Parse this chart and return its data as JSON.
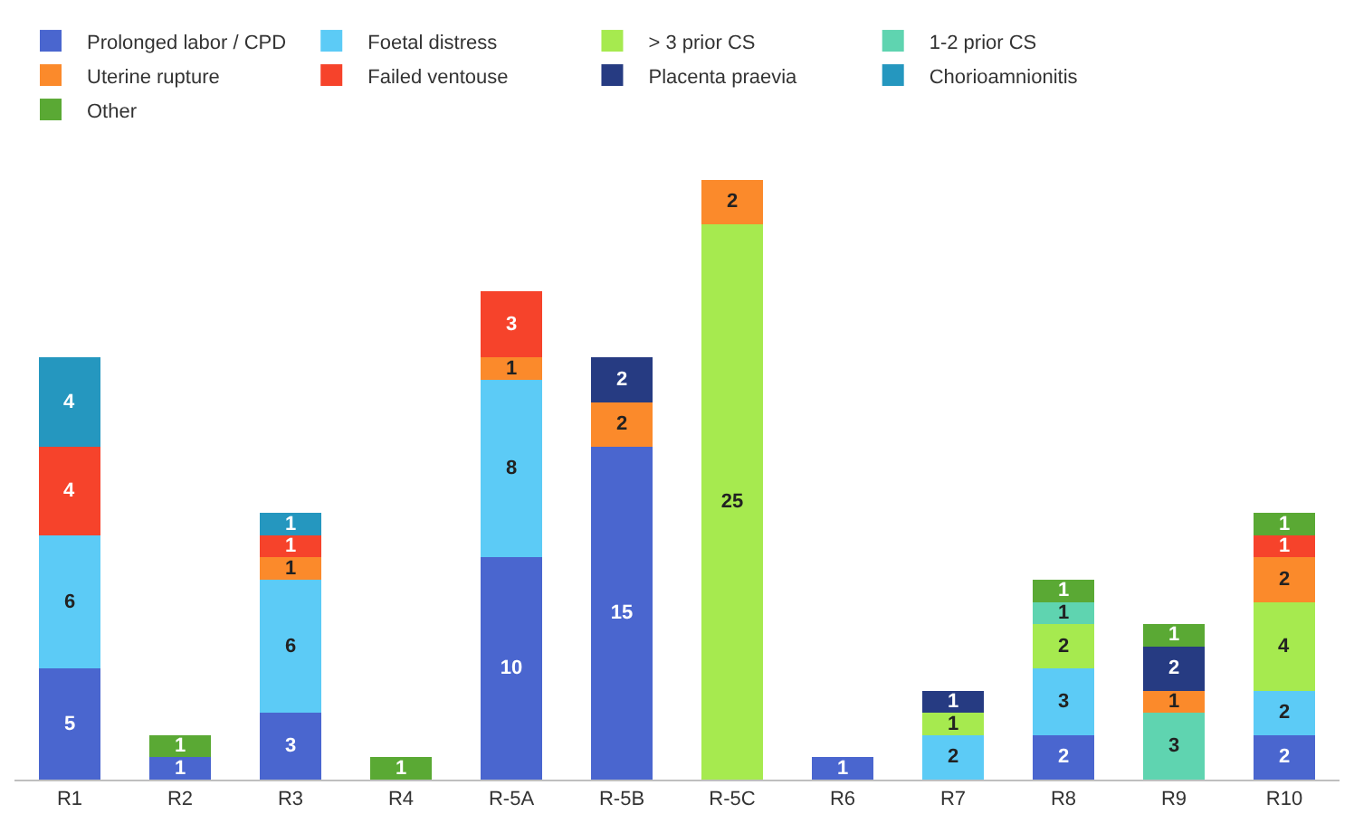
{
  "chart_data": {
    "type": "bar",
    "stacked": true,
    "data_labels": true,
    "legend": "top left",
    "categories": [
      "R1",
      "R2",
      "R3",
      "R4",
      "R-5A",
      "R-5B",
      "R-5C",
      "R6",
      "R7",
      "R8",
      "R9",
      "R10"
    ],
    "series": [
      {
        "name": "Prolonged labor / CPD",
        "color": "#4a66cf",
        "values": [
          5,
          1,
          3,
          null,
          10,
          15,
          null,
          1,
          null,
          2,
          null,
          2
        ]
      },
      {
        "name": "Foetal distress",
        "color": "#5ccbf6",
        "values": [
          6,
          null,
          6,
          null,
          8,
          null,
          null,
          null,
          2,
          3,
          null,
          2
        ]
      },
      {
        "name": "> 3 prior CS",
        "color": "#a6ea4f",
        "values": [
          null,
          null,
          null,
          null,
          null,
          null,
          25,
          null,
          1,
          2,
          null,
          4
        ]
      },
      {
        "name": "1-2 prior CS",
        "color": "#5fd4b0",
        "values": [
          null,
          null,
          null,
          null,
          null,
          null,
          null,
          null,
          null,
          1,
          3,
          null
        ]
      },
      {
        "name": "Uterine rupture",
        "color": "#fb8a2b",
        "values": [
          null,
          null,
          1,
          null,
          1,
          2,
          2,
          null,
          null,
          null,
          1,
          2
        ]
      },
      {
        "name": "Failed ventouse",
        "color": "#f6432b",
        "values": [
          4,
          null,
          1,
          null,
          3,
          null,
          null,
          null,
          null,
          null,
          null,
          1
        ]
      },
      {
        "name": "Placenta praevia",
        "color": "#263b82",
        "values": [
          null,
          null,
          null,
          null,
          null,
          2,
          null,
          null,
          1,
          null,
          2,
          null
        ]
      },
      {
        "name": "Chorioamnionitis",
        "color": "#2597bf",
        "values": [
          4,
          null,
          1,
          null,
          null,
          null,
          null,
          null,
          null,
          null,
          null,
          null
        ]
      },
      {
        "name": "Other",
        "color": "#5aa934",
        "values": [
          null,
          1,
          null,
          1,
          null,
          null,
          null,
          null,
          null,
          1,
          1,
          1
        ]
      }
    ]
  }
}
